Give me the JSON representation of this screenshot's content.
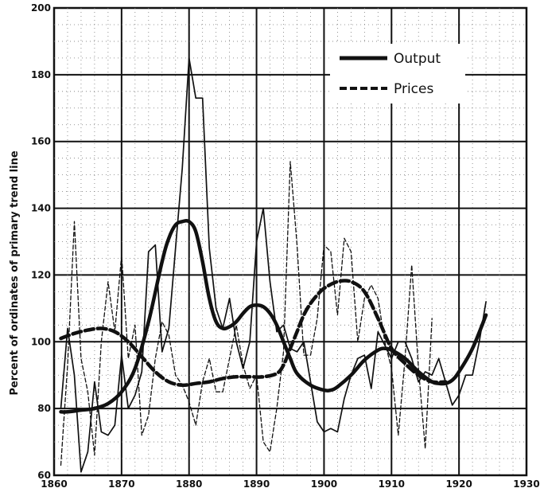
{
  "chart_data": {
    "type": "line",
    "title": "",
    "xlabel": "",
    "ylabel": "Percent of ordinates of primary trend line",
    "xlim": [
      1860,
      1930
    ],
    "ylim": [
      60,
      200
    ],
    "x_ticks": [
      1860,
      1870,
      1880,
      1890,
      1900,
      1910,
      1920,
      1930
    ],
    "x_tick_labels": [
      "1860",
      "1870",
      "1880",
      "1890",
      "1900",
      "1910",
      "1920",
      "1930"
    ],
    "y_ticks": [
      60,
      80,
      100,
      120,
      140,
      160,
      180,
      200
    ],
    "y_tick_labels": [
      "60",
      "80",
      "100",
      "120",
      "140",
      "160",
      "180",
      "200"
    ],
    "grid": true,
    "legend_position": "top-right",
    "series": [
      {
        "name": "Output",
        "style": "solid",
        "kind": "annual",
        "x": [
          1861,
          1862,
          1863,
          1864,
          1865,
          1866,
          1867,
          1868,
          1869,
          1870,
          1871,
          1872,
          1873,
          1874,
          1875,
          1876,
          1877,
          1878,
          1879,
          1880,
          1881,
          1882,
          1883,
          1884,
          1885,
          1886,
          1887,
          1888,
          1889,
          1890,
          1891,
          1892,
          1893,
          1894,
          1895,
          1896,
          1897,
          1898,
          1899,
          1900,
          1901,
          1902,
          1903,
          1904,
          1905,
          1906,
          1907,
          1908,
          1909,
          1910,
          1911,
          1912,
          1913,
          1914,
          1915,
          1916,
          1917,
          1918,
          1919,
          1920,
          1921,
          1922,
          1923,
          1924
        ],
        "y": [
          80,
          104,
          90,
          61,
          67,
          88,
          73,
          72,
          75,
          96,
          80,
          84,
          91,
          127,
          129,
          97,
          104,
          128,
          152,
          185,
          173,
          173,
          128,
          110,
          104,
          113,
          100,
          92,
          100,
          130,
          140,
          118,
          103,
          105,
          98,
          97,
          100,
          88,
          76,
          73,
          74,
          73,
          83,
          90,
          95,
          96,
          86,
          103,
          99,
          95,
          100,
          100,
          95,
          88,
          91,
          90,
          95,
          88,
          81,
          84,
          90,
          90,
          100,
          112
        ]
      },
      {
        "name": "Prices",
        "style": "dashed",
        "kind": "annual",
        "x": [
          1861,
          1862,
          1863,
          1864,
          1865,
          1866,
          1867,
          1868,
          1869,
          1870,
          1871,
          1872,
          1873,
          1874,
          1875,
          1876,
          1877,
          1878,
          1879,
          1880,
          1881,
          1882,
          1883,
          1884,
          1885,
          1886,
          1887,
          1888,
          1889,
          1890,
          1891,
          1892,
          1893,
          1894,
          1895,
          1896,
          1897,
          1898,
          1899,
          1900,
          1901,
          1902,
          1903,
          1904,
          1905,
          1906,
          1907,
          1908,
          1909,
          1910,
          1911,
          1912,
          1913,
          1914,
          1915,
          1916
        ],
        "y": [
          63,
          93,
          136,
          95,
          85,
          66,
          100,
          118,
          103,
          126,
          95,
          105,
          72,
          78,
          95,
          106,
          102,
          90,
          87,
          82,
          75,
          88,
          95,
          85,
          85,
          95,
          105,
          93,
          86,
          90,
          70,
          67,
          80,
          97,
          154,
          129,
          96,
          96,
          107,
          129,
          127,
          108,
          131,
          127,
          100,
          113,
          117,
          113,
          100,
          92,
          72,
          95,
          123,
          92,
          68,
          107
        ]
      },
      {
        "name": "Output",
        "style": "solid",
        "kind": "smoothed",
        "x": [
          1861,
          1862,
          1864,
          1866,
          1868,
          1870,
          1872,
          1874,
          1876,
          1877,
          1878,
          1879,
          1880,
          1881,
          1882,
          1883,
          1884,
          1885,
          1886,
          1887,
          1888,
          1889,
          1890,
          1891,
          1892,
          1893,
          1894,
          1895,
          1896,
          1898,
          1900,
          1901,
          1902,
          1904,
          1906,
          1908,
          1909,
          1910,
          1912,
          1914,
          1916,
          1917,
          1918,
          1919,
          1920,
          1922,
          1924
        ],
        "y": [
          79,
          79,
          79.5,
          80,
          81.5,
          85,
          92,
          106,
          124,
          131,
          135,
          136,
          136,
          133,
          124,
          113,
          106,
          104,
          104.5,
          106,
          108.5,
          110.5,
          111,
          110.5,
          108.5,
          105,
          100,
          95,
          90.5,
          87,
          85.5,
          85.5,
          86.5,
          90,
          94.5,
          97.5,
          98,
          97.5,
          95,
          91,
          88,
          87.5,
          87.5,
          88.5,
          91,
          98,
          108
        ]
      },
      {
        "name": "Prices",
        "style": "dashed",
        "kind": "smoothed",
        "x": [
          1861,
          1863,
          1865,
          1867,
          1869,
          1871,
          1873,
          1875,
          1877,
          1879,
          1881,
          1883,
          1885,
          1887,
          1889,
          1891,
          1893,
          1894,
          1895,
          1896,
          1897,
          1898,
          1899,
          1900,
          1902,
          1904,
          1906,
          1908,
          1910,
          1912,
          1914,
          1916,
          1918
        ],
        "y": [
          101,
          102.5,
          103.5,
          104,
          103,
          100,
          95.5,
          91,
          88,
          87,
          87.5,
          88,
          89,
          89.5,
          89.5,
          89.5,
          90.5,
          93,
          98,
          103,
          108,
          111.5,
          114,
          116,
          118,
          118,
          115,
          107,
          98,
          93.5,
          90,
          88,
          88
        ]
      }
    ]
  },
  "legend": {
    "output_label": "Output",
    "prices_label": "Prices"
  }
}
